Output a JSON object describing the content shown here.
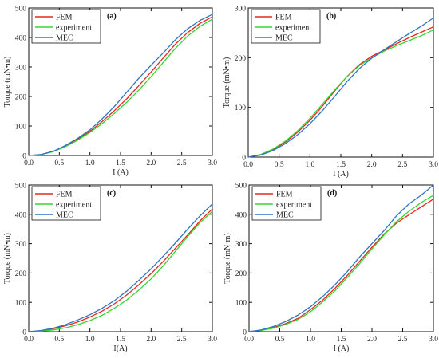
{
  "chart_data": [
    {
      "type": "line",
      "panel_label": "(a)",
      "xlabel": "I (A)",
      "ylabel": "Torque (mN•m)",
      "xlim": [
        0,
        3.0
      ],
      "ylim": [
        0,
        500
      ],
      "xticks": [
        "0.0",
        "0.5",
        "1.0",
        "1.5",
        "2.0",
        "2.5",
        "3.0"
      ],
      "yticks": [
        "0",
        "100",
        "200",
        "300",
        "400",
        "500"
      ],
      "x": [
        0,
        0.2,
        0.4,
        0.6,
        0.8,
        1.0,
        1.2,
        1.4,
        1.6,
        1.8,
        2.0,
        2.2,
        2.4,
        2.6,
        2.8,
        3.0
      ],
      "legend_position": "top-left",
      "series": [
        {
          "name": "FEM",
          "color": "#e8261c",
          "values": [
            0,
            3,
            14,
            32,
            55,
            82,
            115,
            152,
            192,
            237,
            283,
            331,
            378,
            417,
            448,
            470
          ]
        },
        {
          "name": "experiment",
          "color": "#33d633",
          "values": [
            0,
            3,
            13,
            30,
            52,
            78,
            108,
            143,
            180,
            222,
            267,
            316,
            364,
            405,
            438,
            462
          ]
        },
        {
          "name": "MEC",
          "color": "#2e74c4",
          "values": [
            0,
            3,
            14,
            34,
            58,
            87,
            124,
            166,
            214,
            262,
            306,
            348,
            393,
            430,
            458,
            478
          ]
        }
      ]
    },
    {
      "type": "line",
      "panel_label": "(b)",
      "xlabel": "I (A)",
      "ylabel": "Torque (mN•m)",
      "xlim": [
        0,
        3.0
      ],
      "ylim": [
        0,
        300
      ],
      "xticks": [
        "0.0",
        "0.5",
        "1.0",
        "1.5",
        "2.0",
        "2.5",
        "3.0"
      ],
      "yticks": [
        "0",
        "100",
        "200",
        "300"
      ],
      "x": [
        0,
        0.2,
        0.4,
        0.6,
        0.8,
        1.0,
        1.2,
        1.4,
        1.6,
        1.8,
        2.0,
        2.2,
        2.4,
        2.6,
        2.8,
        3.0
      ],
      "legend_position": "top-left",
      "series": [
        {
          "name": "FEM",
          "color": "#e8261c",
          "values": [
            0,
            5,
            15,
            30,
            50,
            74,
            102,
            133,
            162,
            186,
            203,
            215,
            228,
            240,
            251,
            262
          ]
        },
        {
          "name": "experiment",
          "color": "#33d633",
          "values": [
            0,
            5,
            16,
            32,
            53,
            78,
            106,
            135,
            162,
            184,
            200,
            213,
            224,
            234,
            244,
            256
          ]
        },
        {
          "name": "MEC",
          "color": "#2e74c4",
          "values": [
            0,
            4,
            13,
            27,
            45,
            67,
            93,
            122,
            152,
            178,
            199,
            216,
            232,
            248,
            263,
            280
          ]
        }
      ]
    },
    {
      "type": "line",
      "panel_label": "(c)",
      "xlabel": "I(A)",
      "ylabel": "Torque (mN•m)",
      "xlim": [
        0,
        3.0
      ],
      "ylim": [
        0,
        500
      ],
      "xticks": [
        "0.0",
        "0.5",
        "1.0",
        "1.5",
        "2.0",
        "2.5",
        "3.0"
      ],
      "yticks": [
        "0",
        "100",
        "200",
        "300",
        "400",
        "500"
      ],
      "x": [
        0,
        0.2,
        0.4,
        0.6,
        0.8,
        1.0,
        1.2,
        1.4,
        1.6,
        1.8,
        2.0,
        2.2,
        2.4,
        2.6,
        2.8,
        3.0
      ],
      "legend_position": "top-left",
      "series": [
        {
          "name": "FEM",
          "color": "#e8261c",
          "values": [
            0,
            3,
            10,
            20,
            33,
            50,
            70,
            95,
            125,
            160,
            198,
            240,
            285,
            330,
            378,
            418
          ]
        },
        {
          "name": "experiment",
          "color": "#33d633",
          "values": [
            0,
            2,
            6,
            13,
            24,
            38,
            56,
            80,
            108,
            142,
            180,
            225,
            275,
            325,
            372,
            410
          ]
        },
        {
          "name": "MEC",
          "color": "#2e74c4",
          "values": [
            0,
            4,
            12,
            24,
            40,
            58,
            80,
            106,
            138,
            175,
            214,
            258,
            303,
            350,
            395,
            435
          ]
        }
      ]
    },
    {
      "type": "line",
      "panel_label": "(d)",
      "xlabel": "I (A)",
      "ylabel": "Torque (mN·m)",
      "xlim": [
        0,
        3.0
      ],
      "ylim": [
        0,
        500
      ],
      "xticks": [
        "0.0",
        "0.5",
        "1.0",
        "1.5",
        "2.0",
        "2.5",
        "3.0"
      ],
      "yticks": [
        "0",
        "100",
        "200",
        "300",
        "400",
        "500"
      ],
      "x": [
        0,
        0.2,
        0.4,
        0.6,
        0.8,
        1.0,
        1.2,
        1.4,
        1.6,
        1.8,
        2.0,
        2.2,
        2.4,
        2.6,
        2.8,
        3.0
      ],
      "legend_position": "top-left",
      "series": [
        {
          "name": "FEM",
          "color": "#e8261c",
          "values": [
            0,
            5,
            14,
            28,
            46,
            75,
            108,
            148,
            192,
            240,
            288,
            333,
            370,
            398,
            425,
            452
          ]
        },
        {
          "name": "experiment",
          "color": "#33d633",
          "values": [
            0,
            4,
            12,
            25,
            42,
            68,
            102,
            140,
            185,
            232,
            282,
            330,
            375,
            410,
            440,
            465
          ]
        },
        {
          "name": "MEC",
          "color": "#2e74c4",
          "values": [
            0,
            6,
            18,
            35,
            57,
            85,
            120,
            160,
            205,
            255,
            300,
            345,
            395,
            435,
            465,
            500
          ]
        }
      ]
    }
  ]
}
